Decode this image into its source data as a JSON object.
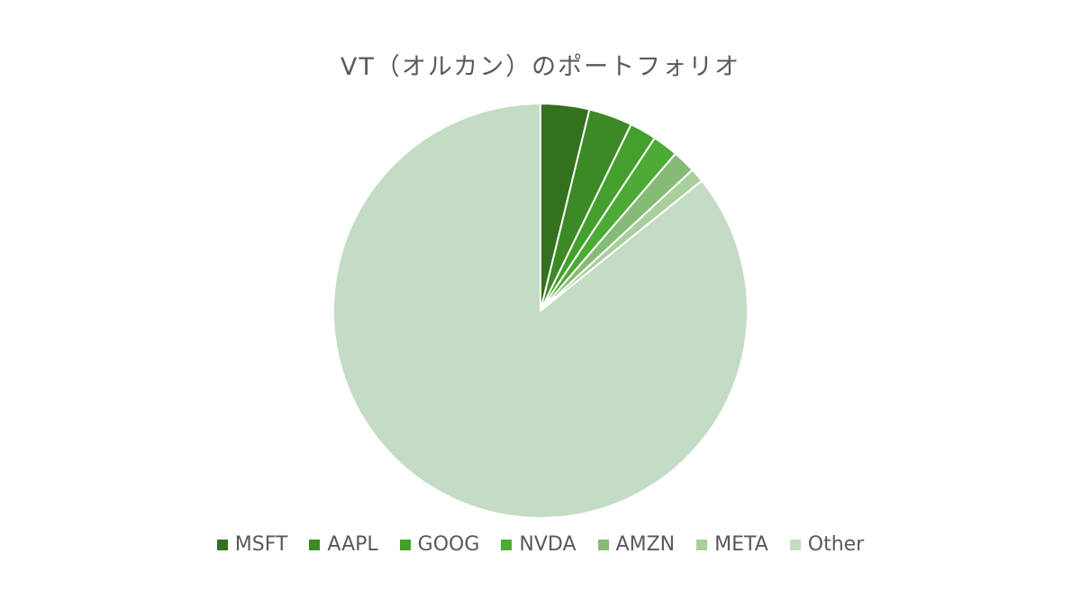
{
  "chart_data": {
    "type": "pie",
    "title": "VT（オルカン）のポートフォリオ",
    "categories": [
      "MSFT",
      "AAPL",
      "GOOG",
      "NVDA",
      "AMZN",
      "META",
      "Other"
    ],
    "values": [
      3.8,
      3.4,
      2.1,
      2.0,
      1.8,
      1.1,
      85.8
    ],
    "colors": [
      "#33711F",
      "#3C8A26",
      "#43A02D",
      "#4DAA35",
      "#86BB76",
      "#A8CF9C",
      "#C5DCC4"
    ],
    "legend": "bottom",
    "start_angle": "12 o'clock",
    "direction": "clockwise"
  }
}
